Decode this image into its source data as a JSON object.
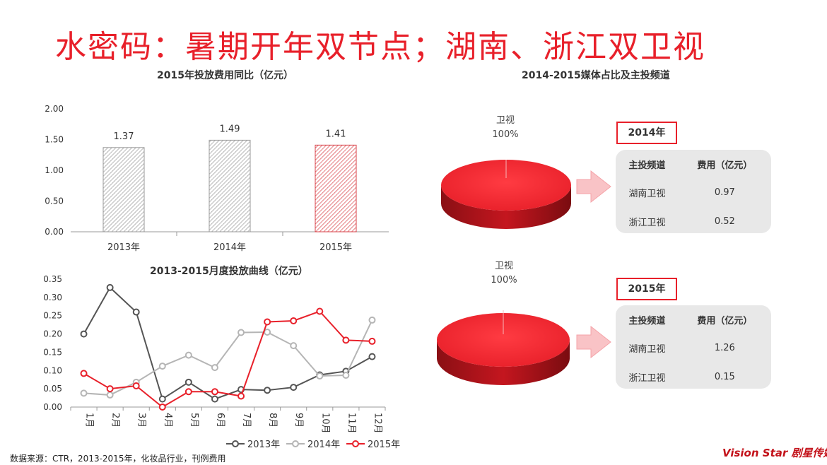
{
  "page": {
    "title": "水密码：暑期开年双节点；湖南、浙江双卫视",
    "source_note": "数据来源：CTR，2013-2015年，化妆品行业，刊例费用",
    "brand": "Vision Star 剧星传媒"
  },
  "colors": {
    "accent": "#e8202a",
    "s2013": "#555555",
    "s2014": "#b5b5b5",
    "s2015": "#e8202a"
  },
  "chart_data": [
    {
      "type": "bar",
      "title": "2015年投放费用同比（亿元）",
      "categories": [
        "2013年",
        "2014年",
        "2015年"
      ],
      "values": [
        1.37,
        1.49,
        1.41
      ],
      "value_labels": [
        "1.37",
        "1.49",
        "1.41"
      ],
      "ylim": [
        0,
        2.0
      ],
      "yticks": [
        "0.00",
        "0.50",
        "1.00",
        "1.50",
        "2.00"
      ],
      "grid": false
    },
    {
      "type": "line",
      "title": "2013-2015月度投放曲线（亿元）",
      "categories": [
        "1月",
        "2月",
        "3月",
        "4月",
        "5月",
        "6月",
        "7月",
        "8月",
        "9月",
        "10月",
        "11月",
        "12月"
      ],
      "ylim": [
        0,
        0.35
      ],
      "yticks": [
        "0.00",
        "0.05",
        "0.10",
        "0.15",
        "0.20",
        "0.25",
        "0.30",
        "0.35"
      ],
      "legend_position": "bottom",
      "series": [
        {
          "name": "2013年",
          "values": [
            0.2,
            0.327,
            0.26,
            0.022,
            0.068,
            0.022,
            0.048,
            0.046,
            0.054,
            0.088,
            0.098,
            0.138
          ]
        },
        {
          "name": "2014年",
          "values": [
            0.038,
            0.033,
            0.068,
            0.112,
            0.142,
            0.108,
            0.204,
            0.205,
            0.168,
            0.085,
            0.087,
            0.238
          ]
        },
        {
          "name": "2015年",
          "values": [
            0.092,
            0.05,
            0.058,
            0.0,
            0.042,
            0.042,
            0.03,
            0.233,
            0.236,
            0.262,
            0.183,
            0.18
          ]
        }
      ]
    },
    {
      "type": "pie",
      "title": "2014-2015媒体占比及主投频道",
      "year": "2014年",
      "slices": [
        {
          "label": "卫视",
          "value": 100,
          "value_label": "100%"
        }
      ]
    },
    {
      "type": "pie",
      "year": "2015年",
      "slices": [
        {
          "label": "卫视",
          "value": 100,
          "value_label": "100%"
        }
      ]
    }
  ],
  "tables": [
    {
      "headers": [
        "主投频道",
        "费用（亿元）"
      ],
      "rows": [
        [
          "湖南卫视",
          "0.97"
        ],
        [
          "浙江卫视",
          "0.52"
        ]
      ]
    },
    {
      "headers": [
        "主投频道",
        "费用（亿元）"
      ],
      "rows": [
        [
          "湖南卫视",
          "1.26"
        ],
        [
          "浙江卫视",
          "0.15"
        ]
      ]
    }
  ]
}
